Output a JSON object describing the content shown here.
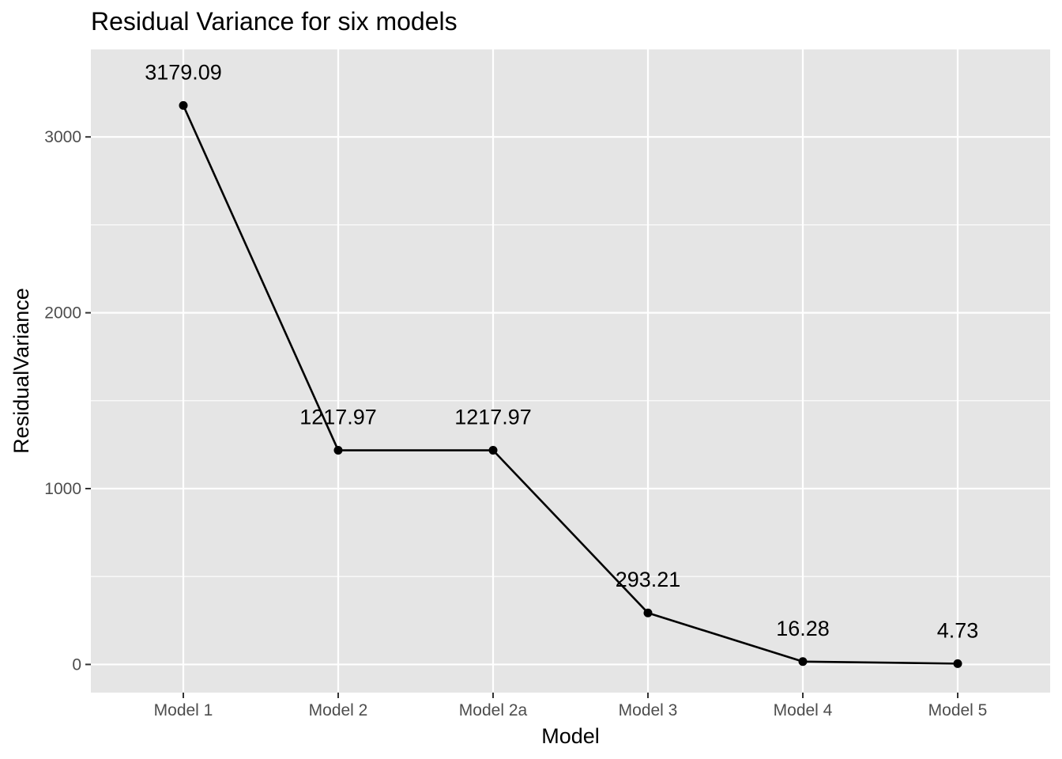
{
  "chart_data": {
    "type": "line",
    "title": "Residual Variance for six models",
    "xlabel": "Model",
    "ylabel": "ResidualVariance",
    "categories": [
      "Model 1",
      "Model 2",
      "Model 2a",
      "Model 3",
      "Model 4",
      "Model 5"
    ],
    "values": [
      3179.09,
      1217.97,
      1217.97,
      293.21,
      16.28,
      4.73
    ],
    "data_labels": [
      "3179.09",
      "1217.97",
      "1217.97",
      "293.21",
      "16.28",
      "4.73"
    ],
    "ylim": [
      -160,
      3500
    ],
    "y_ticks": [
      0,
      1000,
      2000,
      3000
    ],
    "y_tick_labels": [
      "0",
      "1000",
      "2000",
      "3000"
    ],
    "y_minor_ticks": [
      500,
      1500,
      2500,
      3500
    ],
    "grid": true,
    "legend": "none",
    "colors": {
      "panel_background": "#e5e5e5",
      "grid": "#ffffff",
      "line": "#000000",
      "point": "#000000",
      "tick_label": "#4d4d4d",
      "tick_mark": "#333333"
    }
  }
}
